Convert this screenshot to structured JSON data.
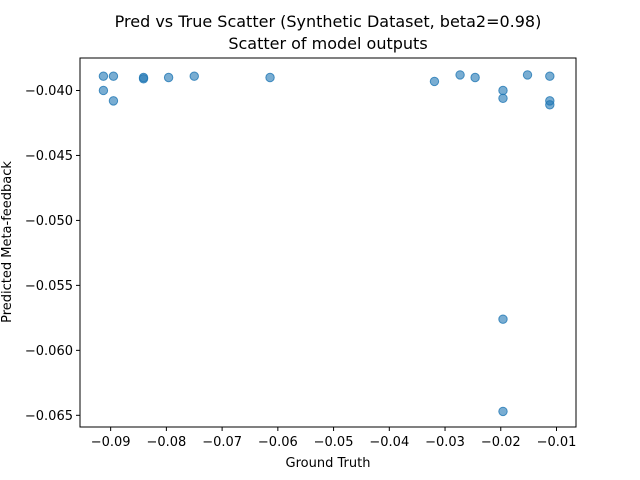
{
  "chart_data": {
    "type": "scatter",
    "title": "Pred vs True Scatter (Synthetic Dataset, beta2=0.98)",
    "subtitle": "Scatter of model outputs",
    "xlabel": "Ground Truth",
    "ylabel": "Predicted Meta-feedback",
    "xlim": [
      -0.0955,
      -0.0065
    ],
    "ylim": [
      -0.0659,
      -0.0375
    ],
    "x_ticks": [
      -0.09,
      -0.08,
      -0.07,
      -0.06,
      -0.05,
      -0.04,
      -0.03,
      -0.02,
      -0.01
    ],
    "x_tick_labels": [
      "−0.09",
      "−0.08",
      "−0.07",
      "−0.06",
      "−0.05",
      "−0.04",
      "−0.03",
      "−0.02",
      "−0.01"
    ],
    "y_ticks": [
      -0.04,
      -0.045,
      -0.05,
      -0.055,
      -0.06,
      -0.065
    ],
    "y_tick_labels": [
      "−0.040",
      "−0.045",
      "−0.050",
      "−0.055",
      "−0.060",
      "−0.065"
    ],
    "grid": false,
    "marker_color": "#1f77b4",
    "points": [
      {
        "x": -0.0913,
        "y": -0.0389
      },
      {
        "x": -0.0913,
        "y": -0.04
      },
      {
        "x": -0.0895,
        "y": -0.0389
      },
      {
        "x": -0.0895,
        "y": -0.0408
      },
      {
        "x": -0.0841,
        "y": -0.039
      },
      {
        "x": -0.0841,
        "y": -0.0391
      },
      {
        "x": -0.0796,
        "y": -0.039
      },
      {
        "x": -0.075,
        "y": -0.0389
      },
      {
        "x": -0.0614,
        "y": -0.039
      },
      {
        "x": -0.0319,
        "y": -0.0393
      },
      {
        "x": -0.0273,
        "y": -0.0388
      },
      {
        "x": -0.0246,
        "y": -0.039
      },
      {
        "x": -0.0196,
        "y": -0.04
      },
      {
        "x": -0.0196,
        "y": -0.0406
      },
      {
        "x": -0.0196,
        "y": -0.0576
      },
      {
        "x": -0.0196,
        "y": -0.0647
      },
      {
        "x": -0.0152,
        "y": -0.0388
      },
      {
        "x": -0.0112,
        "y": -0.0389
      },
      {
        "x": -0.0112,
        "y": -0.0408
      },
      {
        "x": -0.0112,
        "y": -0.0411
      }
    ]
  }
}
